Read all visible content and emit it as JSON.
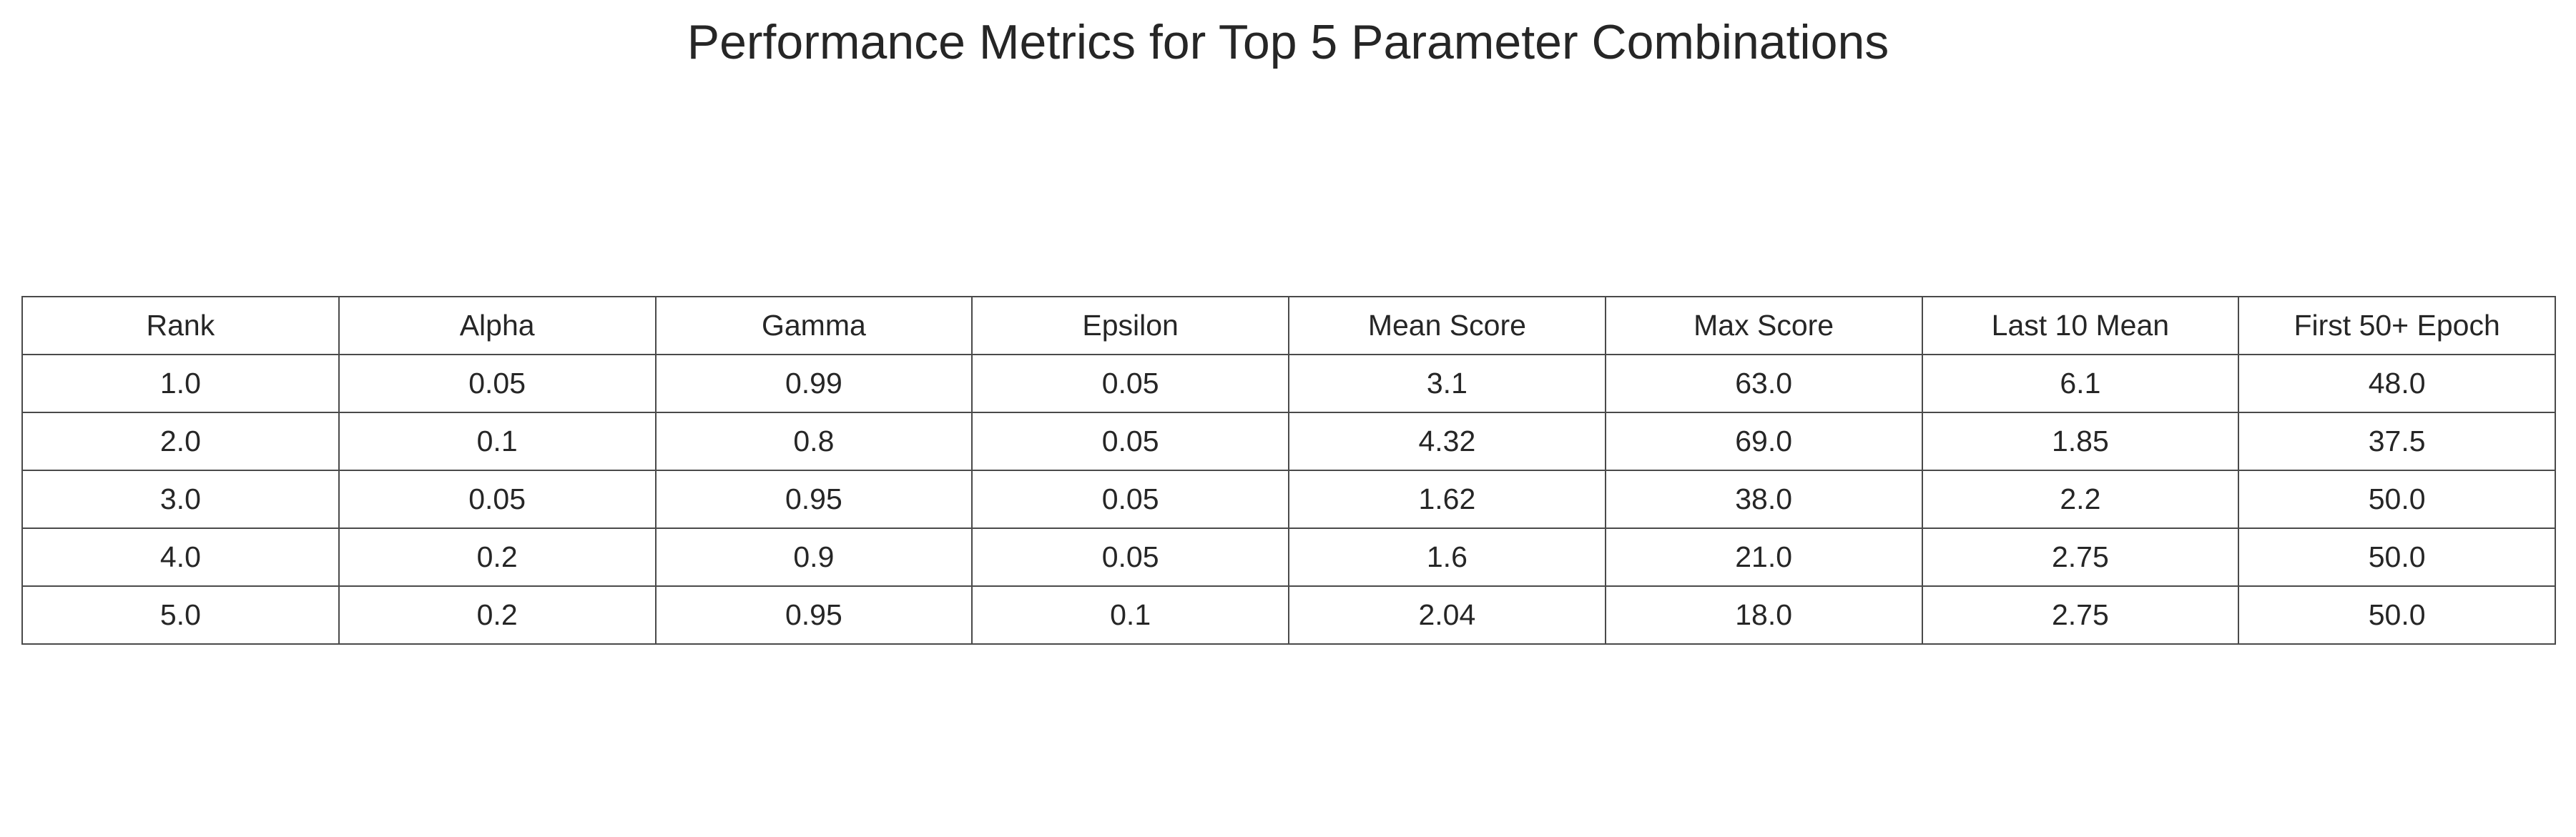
{
  "chart_data": {
    "type": "table",
    "title": "Performance Metrics for Top 5 Parameter Combinations",
    "columns": [
      "Rank",
      "Alpha",
      "Gamma",
      "Epsilon",
      "Mean Score",
      "Max Score",
      "Last 10 Mean",
      "First 50+ Epoch"
    ],
    "rows": [
      [
        "1.0",
        "0.05",
        "0.99",
        "0.05",
        "3.1",
        "63.0",
        "6.1",
        "48.0"
      ],
      [
        "2.0",
        "0.1",
        "0.8",
        "0.05",
        "4.32",
        "69.0",
        "1.85",
        "37.5"
      ],
      [
        "3.0",
        "0.05",
        "0.95",
        "0.05",
        "1.62",
        "38.0",
        "2.2",
        "50.0"
      ],
      [
        "4.0",
        "0.2",
        "0.9",
        "0.05",
        "1.6",
        "21.0",
        "2.75",
        "50.0"
      ],
      [
        "5.0",
        "0.2",
        "0.95",
        "0.1",
        "2.04",
        "18.0",
        "2.75",
        "50.0"
      ]
    ]
  }
}
